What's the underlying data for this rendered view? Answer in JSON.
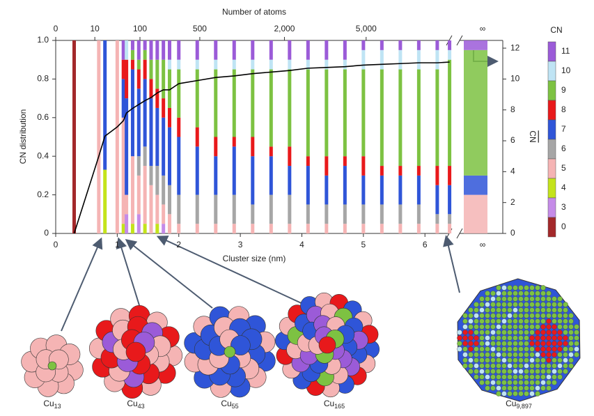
{
  "chart_data": {
    "type": "stacked_bar",
    "x2label": "Number of atoms",
    "xlabel": "Cluster size (nm)",
    "ylabel": "CN distribution",
    "y2label": "CN",
    "legend_title": "CN",
    "break_label": "∞",
    "xlim": [
      0,
      6.45
    ],
    "xticks": [
      0,
      1,
      2,
      3,
      4,
      5,
      6
    ],
    "ylim": [
      0,
      1
    ],
    "yticks": [
      0,
      0.2,
      0.4,
      0.6,
      0.8,
      {
        "value": 1,
        "label": "1.0"
      }
    ],
    "y2lim": [
      0,
      12.5
    ],
    "y2ticks": [
      0,
      2,
      4,
      6,
      8,
      10,
      12
    ],
    "x2ticks": [
      0,
      10,
      100,
      500,
      {
        "value": 2000,
        "label": "2,000"
      },
      {
        "value": 5000,
        "label": "5,000"
      }
    ],
    "x": [
      0.3,
      0.7,
      0.8,
      1.0,
      1.1,
      1.15,
      1.25,
      1.35,
      1.45,
      1.55,
      1.65,
      1.75,
      1.85,
      2.0,
      2.3,
      2.6,
      2.9,
      3.2,
      3.5,
      3.8,
      4.1,
      4.4,
      4.7,
      5.0,
      5.3,
      5.6,
      5.9,
      6.2,
      6.4
    ],
    "series": [
      {
        "name": "0",
        "color": "#a3282a",
        "values": [
          1,
          0,
          0,
          0,
          0,
          0,
          0,
          0,
          0,
          0,
          0,
          0,
          0,
          0,
          0,
          0,
          0,
          0,
          0,
          0,
          0,
          0,
          0,
          0,
          0,
          0,
          0,
          0,
          0
        ]
      },
      {
        "name": "3",
        "color": "#c58be8",
        "values": [
          0,
          0,
          0,
          0,
          0,
          0.1,
          0,
          0.1,
          0,
          0,
          0,
          0.05,
          0,
          0,
          0,
          0,
          0,
          0,
          0,
          0,
          0,
          0,
          0,
          0,
          0,
          0,
          0,
          0,
          0
        ]
      },
      {
        "name": "4",
        "color": "#c4e31b",
        "values": [
          0,
          0,
          0.33,
          0,
          0.05,
          0,
          0.05,
          0,
          0.05,
          0,
          0.05,
          0,
          0,
          0,
          0,
          0,
          0,
          0,
          0,
          0,
          0,
          0,
          0,
          0,
          0,
          0,
          0,
          0,
          0
        ]
      },
      {
        "name": "5",
        "color": "#f5b4b4",
        "values": [
          0,
          1,
          0,
          1,
          0.55,
          0.1,
          0.35,
          0.2,
          0.3,
          0.25,
          0.15,
          0.1,
          0.1,
          0.05,
          0.05,
          0.05,
          0.05,
          0.05,
          0.05,
          0.05,
          0.05,
          0.05,
          0.05,
          0.05,
          0.05,
          0.05,
          0.05,
          0.05,
          0.05
        ]
      },
      {
        "name": "6",
        "color": "#a6a6a6",
        "values": [
          0,
          0,
          0,
          0,
          0,
          0,
          0,
          0.1,
          0.1,
          0.1,
          0.15,
          0.15,
          0.15,
          0.15,
          0.15,
          0.15,
          0.15,
          0.1,
          0.15,
          0.15,
          0.1,
          0.1,
          0.1,
          0.1,
          0.1,
          0.1,
          0.1,
          0.05,
          0.05
        ]
      },
      {
        "name": "7",
        "color": "#2f55d8",
        "values": [
          0,
          0,
          0.67,
          0,
          0.2,
          0.5,
          0.45,
          0.35,
          0.35,
          0.35,
          0.3,
          0.3,
          0.3,
          0.3,
          0.25,
          0.2,
          0.25,
          0.25,
          0.2,
          0.15,
          0.2,
          0.15,
          0.2,
          0.15,
          0.15,
          0.15,
          0.15,
          0.15,
          0.15
        ]
      },
      {
        "name": "8",
        "color": "#e8191b",
        "values": [
          0,
          0,
          0,
          0,
          0.1,
          0.2,
          0.05,
          0.1,
          0.1,
          0.1,
          0.1,
          0.1,
          0.1,
          0.1,
          0.1,
          0.1,
          0.05,
          0.1,
          0.05,
          0.1,
          0.05,
          0.1,
          0.05,
          0.1,
          0.05,
          0.05,
          0.05,
          0.1,
          0.1
        ]
      },
      {
        "name": "9",
        "color": "#7dc242",
        "values": [
          0,
          0,
          0,
          0,
          0,
          0,
          0.05,
          0.05,
          0.05,
          0.1,
          0.15,
          0.2,
          0.2,
          0.25,
          0.3,
          0.35,
          0.35,
          0.35,
          0.4,
          0.4,
          0.45,
          0.45,
          0.45,
          0.45,
          0.5,
          0.5,
          0.5,
          0.5,
          0.55
        ]
      },
      {
        "name": "10",
        "color": "#bfe4f4",
        "values": [
          0,
          0,
          0,
          0,
          0,
          0.1,
          0,
          0,
          0,
          0,
          0,
          0,
          0.05,
          0.05,
          0.05,
          0.05,
          0.05,
          0.05,
          0.05,
          0.05,
          0.05,
          0.05,
          0.05,
          0.1,
          0.1,
          0.1,
          0.1,
          0.1,
          0.05
        ]
      },
      {
        "name": "11",
        "color": "#9b5bd8",
        "values": [
          0,
          0,
          0,
          0,
          0.1,
          0,
          0.05,
          0.1,
          0.05,
          0.1,
          0.1,
          0.1,
          0.1,
          0.1,
          0.1,
          0.1,
          0.1,
          0.1,
          0.1,
          0.1,
          0.1,
          0.1,
          0.1,
          0.05,
          0.05,
          0.05,
          0.05,
          0.05,
          0.05
        ]
      }
    ],
    "bulk": {
      "values": [
        0,
        0,
        0,
        0.2,
        0,
        0.1,
        0,
        0.65,
        0,
        0.05
      ]
    },
    "mean_line": {
      "axis": "y2",
      "color": "#000000",
      "values": [
        0,
        5,
        6.3,
        6.9,
        7.3,
        7.8,
        8.1,
        8.35,
        8.6,
        8.8,
        9.1,
        9.3,
        9.3,
        9.7,
        9.9,
        10.1,
        10.2,
        10.35,
        10.45,
        10.55,
        10.7,
        10.75,
        10.8,
        10.9,
        10.95,
        11.0,
        11.05,
        11.05,
        11.1
      ]
    },
    "structures": [
      {
        "formula": "Cu",
        "subscript": "13"
      },
      {
        "formula": "Cu",
        "subscript": "43"
      },
      {
        "formula": "Cu",
        "subscript": "55"
      },
      {
        "formula": "Cu",
        "subscript": "165"
      },
      {
        "formula": "Cu",
        "subscript": "9,897"
      }
    ]
  }
}
